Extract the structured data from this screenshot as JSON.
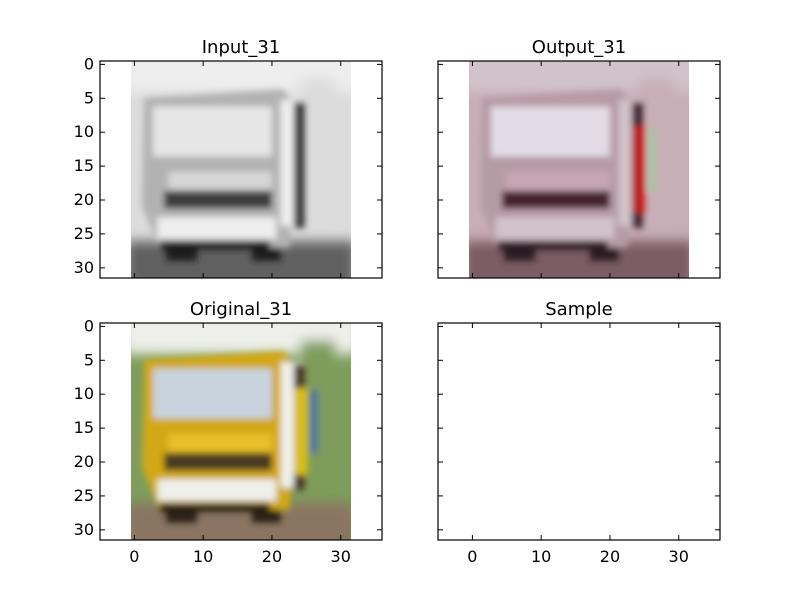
{
  "chart_data": [
    {
      "type": "image",
      "title": "Input_31",
      "image_kind": "grayscale",
      "image_subject": "truck",
      "xlim": [
        -5,
        36
      ],
      "ylim": [
        31.5,
        -0.5
      ],
      "image_extent": [
        -0.5,
        31.5
      ],
      "xticks": [
        0,
        10,
        20,
        30
      ],
      "yticks": [
        0,
        5,
        10,
        15,
        20,
        25,
        30
      ],
      "show_xtick_labels": false,
      "show_ytick_labels": true,
      "colors": {
        "background": "#dcdcdc",
        "upper": "#eeeeee",
        "mid": "#b2b2b2",
        "shadow": "#3e3e3e",
        "dark": "#1a1a1a",
        "window": "#e6e6e6",
        "grille": "#d5d5d5",
        "ground": "#616161"
      }
    },
    {
      "type": "image",
      "title": "Output_31",
      "image_kind": "color",
      "image_subject": "truck",
      "xlim": [
        -5,
        36
      ],
      "ylim": [
        31.5,
        -0.5
      ],
      "image_extent": [
        -0.5,
        31.5
      ],
      "xticks": [
        0,
        10,
        20,
        30
      ],
      "yticks": [
        0,
        5,
        10,
        15,
        20,
        25,
        30
      ],
      "show_xtick_labels": false,
      "show_ytick_labels": false,
      "colors": {
        "background": "#c8aeb6",
        "upper": "#d2c2ca",
        "mid": "#b69ba5",
        "shadow": "#45222f",
        "dark": "#2a1a22",
        "window": "#e2dbe5",
        "grille": "#c8a6b4",
        "ground": "#7a5c64",
        "accent": "#cf1a17",
        "accent2": "#a6c7a5"
      }
    },
    {
      "type": "image",
      "title": "Original_31",
      "image_kind": "color",
      "image_subject": "truck",
      "xlim": [
        -5,
        36
      ],
      "ylim": [
        31.5,
        -0.5
      ],
      "image_extent": [
        -0.5,
        31.5
      ],
      "xticks": [
        0,
        10,
        20,
        30
      ],
      "yticks": [
        0,
        5,
        10,
        15,
        20,
        25,
        30
      ],
      "show_xtick_labels": true,
      "show_ytick_labels": true,
      "colors": {
        "background": "#7e9d5b",
        "upper": "#eff0eb",
        "mid": "#d2a816",
        "shadow": "#4a3a20",
        "dark": "#2b2414",
        "window": "#c9d3de",
        "grille": "#e8c02a",
        "ground": "#8a7462",
        "accent": "#f2d20f",
        "accent2": "#4a74ac"
      }
    },
    {
      "type": "empty",
      "title": "Sample",
      "xlim": [
        -5,
        36
      ],
      "ylim": [
        31.5,
        -0.5
      ],
      "xticks": [
        0,
        10,
        20,
        30
      ],
      "yticks": [
        0,
        5,
        10,
        15,
        20,
        25,
        30
      ],
      "show_xtick_labels": true,
      "show_ytick_labels": false
    }
  ]
}
